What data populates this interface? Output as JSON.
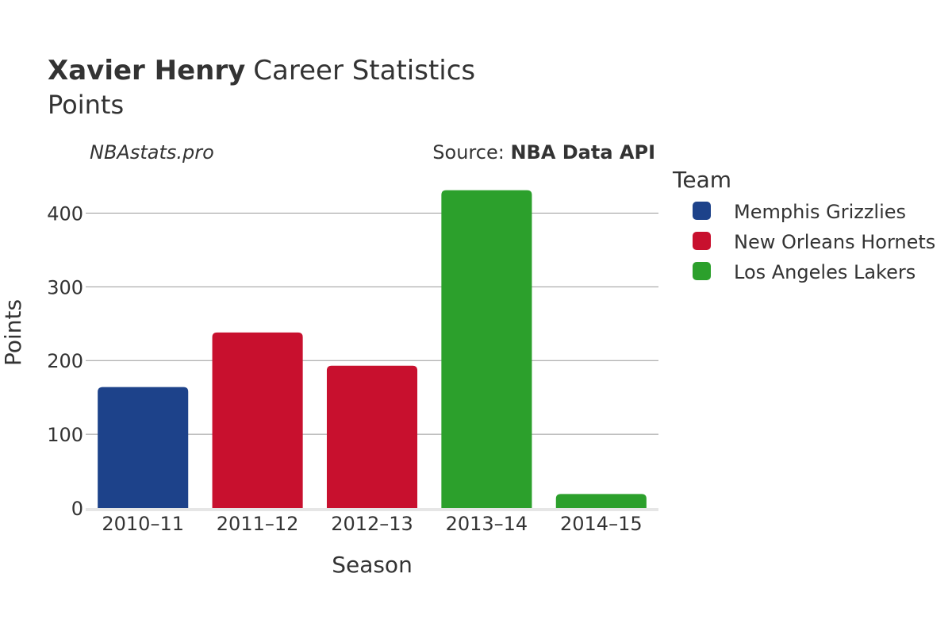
{
  "header": {
    "player_name": "Xavier Henry",
    "title_rest": "Career Statistics",
    "subtitle": "Points"
  },
  "watermark": "NBAstats.pro",
  "source": {
    "label": "Source: ",
    "value": "NBA Data API"
  },
  "legend": {
    "title": "Team"
  },
  "teams": [
    {
      "name": "Memphis Grizzlies",
      "color": "#1d428a"
    },
    {
      "name": "New Orleans Hornets",
      "color": "#c8102e"
    },
    {
      "name": "Los Angeles Lakers",
      "color": "#2ca02c"
    }
  ],
  "chart_data": {
    "type": "bar",
    "categories": [
      "2010–11",
      "2011–12",
      "2012–13",
      "2013–14",
      "2014–15"
    ],
    "values": [
      164,
      238,
      193,
      431,
      19
    ],
    "bar_teams": [
      "Memphis Grizzlies",
      "New Orleans Hornets",
      "New Orleans Hornets",
      "Los Angeles Lakers",
      "Los Angeles Lakers"
    ],
    "xlabel": "Season",
    "ylabel": "Points",
    "ylim": [
      0,
      450
    ],
    "yticks": [
      0,
      100,
      200,
      300,
      400
    ],
    "grid": true,
    "legend_position": "right"
  }
}
